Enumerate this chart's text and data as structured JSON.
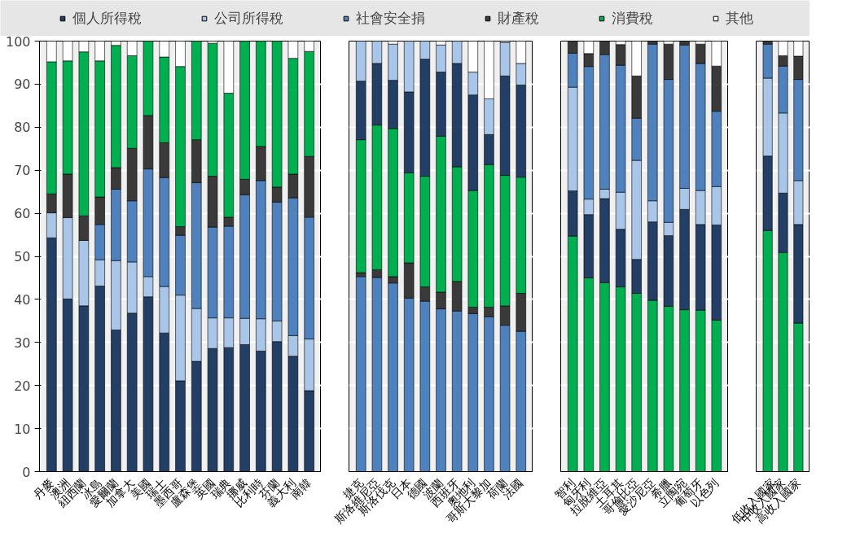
{
  "chart_data": [
    {
      "type": "bar",
      "stacked": true,
      "legend": "top",
      "grid": "y",
      "ylim": [
        0,
        100
      ],
      "yticks": [
        0,
        10,
        20,
        30,
        40,
        50,
        60,
        70,
        80,
        90,
        100
      ],
      "categories": [
        "丹麥",
        "澳洲",
        "紐西蘭",
        "冰島",
        "愛爾蘭",
        "加拿大",
        "美國",
        "瑞士",
        "墨西哥",
        "盧森堡",
        "英國",
        "瑞典",
        "挪威",
        "比利時",
        "芬蘭",
        "義大利",
        "南韓"
      ],
      "series": [
        {
          "name": "個人所得稅",
          "color": "#243f66",
          "values": [
            54.3,
            40.1,
            38.5,
            43.1,
            32.9,
            36.8,
            40.6,
            32.2,
            21.1,
            25.6,
            28.6,
            28.8,
            29.5,
            28.0,
            30.2,
            26.8,
            18.8
          ]
        },
        {
          "name": "公司所得稅",
          "color": "#a9c6e8",
          "values": [
            5.8,
            18.9,
            15.2,
            6.1,
            16.1,
            11.9,
            4.7,
            10.8,
            19.9,
            12.3,
            7.1,
            6.9,
            6.1,
            7.5,
            4.8,
            4.8,
            12.0
          ]
        },
        {
          "name": "社會安全捐",
          "color": "#4f81bd",
          "values": [
            0,
            0,
            0,
            8.2,
            16.6,
            14.2,
            25.0,
            25.3,
            13.9,
            29.2,
            21.1,
            21.3,
            28.7,
            32.1,
            27.6,
            32.0,
            28.3
          ]
        },
        {
          "name": "財產稅",
          "color": "#3a3a3a",
          "values": [
            4.4,
            10.1,
            5.7,
            6.4,
            5.0,
            12.2,
            12.4,
            8.1,
            2.0,
            10.0,
            11.8,
            2.1,
            3.6,
            7.9,
            3.5,
            5.5,
            14.1
          ]
        },
        {
          "name": "消費稅",
          "color": "#00b050",
          "values": [
            30.7,
            26.3,
            38.1,
            31.6,
            28.4,
            21.5,
            17.3,
            19.9,
            37.2,
            22.9,
            30.9,
            28.8,
            32.1,
            24.5,
            33.9,
            26.9,
            24.4
          ]
        },
        {
          "name": "其他",
          "color": "#ffffff",
          "values": [
            4.8,
            4.6,
            2.5,
            4.6,
            1.0,
            3.4,
            0,
            3.7,
            5.9,
            0,
            0.5,
            12.1,
            0,
            0,
            0,
            4.0,
            2.4
          ]
        }
      ]
    },
    {
      "type": "bar",
      "stacked": true,
      "grid": "y",
      "tick_labels": "x",
      "ylim": [
        0,
        100
      ],
      "yticks": [
        0,
        10,
        20,
        30,
        40,
        50,
        60,
        70,
        80,
        90,
        100
      ],
      "categories": [
        "捷克",
        "斯洛維尼亞",
        "斯洛伐克",
        "日本",
        "德國",
        "波蘭",
        "西班牙",
        "奧地利",
        "哥斯大黎加",
        "荷蘭",
        "法國"
      ],
      "series": [
        {
          "color": "#4f81bd",
          "values": [
            45.3,
            45.1,
            43.8,
            40.3,
            39.6,
            37.8,
            37.3,
            36.7,
            36.0,
            34.0,
            32.6
          ]
        },
        {
          "color": "#3a3a3a",
          "values": [
            0.9,
            1.8,
            1.5,
            8.2,
            3.3,
            3.9,
            6.9,
            1.5,
            2.2,
            4.5,
            8.8
          ]
        },
        {
          "color": "#00b050",
          "values": [
            30.9,
            33.6,
            34.4,
            20.9,
            25.7,
            36.2,
            26.6,
            27.1,
            33.1,
            30.3,
            27.0
          ]
        },
        {
          "color": "#243f66",
          "values": [
            13.6,
            14.3,
            11.2,
            18.8,
            27.2,
            14.9,
            24.0,
            22.2,
            7.0,
            23.1,
            21.4
          ]
        },
        {
          "color": "#a9c6e8",
          "values": [
            9.3,
            5.2,
            8.4,
            11.8,
            4.2,
            6.3,
            5.2,
            5.3,
            8.3,
            7.8,
            5.0
          ]
        },
        {
          "color": "#ffffff",
          "values": [
            0,
            0,
            0.7,
            0,
            0,
            0.9,
            0,
            7.2,
            13.4,
            0.3,
            5.2
          ]
        }
      ]
    },
    {
      "type": "bar",
      "stacked": true,
      "grid": "y",
      "tick_labels": "x",
      "ylim": [
        0,
        100
      ],
      "yticks": [
        0,
        10,
        20,
        30,
        40,
        50,
        60,
        70,
        80,
        90,
        100
      ],
      "categories": [
        "智利",
        "匈牙利",
        "拉脫維亞",
        "土耳其",
        "哥倫比亞",
        "愛沙尼亞",
        "希臘",
        "立陶宛",
        "葡萄牙",
        "以色列"
      ],
      "series": [
        {
          "color": "#00b050",
          "values": [
            54.7,
            45.0,
            43.9,
            42.9,
            41.4,
            39.8,
            38.4,
            37.6,
            37.5,
            35.2
          ]
        },
        {
          "color": "#243f66",
          "values": [
            10.5,
            14.7,
            19.5,
            13.4,
            7.9,
            18.2,
            16.4,
            23.3,
            19.9,
            22.1
          ]
        },
        {
          "color": "#a9c6e8",
          "values": [
            24.1,
            3.6,
            2.2,
            8.6,
            23.0,
            4.9,
            3.1,
            4.9,
            7.9,
            8.9
          ]
        },
        {
          "color": "#4f81bd",
          "values": [
            7.9,
            30.8,
            31.3,
            29.5,
            9.8,
            36.4,
            33.2,
            33.3,
            29.5,
            17.5
          ]
        },
        {
          "color": "#3a3a3a",
          "values": [
            2.8,
            3.0,
            3.1,
            4.8,
            9.8,
            0.7,
            8.2,
            0.9,
            4.5,
            10.5
          ]
        },
        {
          "color": "#ffffff",
          "values": [
            0,
            2.9,
            0,
            0.8,
            8.1,
            0,
            0.7,
            0,
            0.7,
            5.8
          ]
        }
      ]
    },
    {
      "type": "bar",
      "stacked": true,
      "grid": "y",
      "tick_labels": "x",
      "ylim": [
        0,
        100
      ],
      "yticks": [
        0,
        10,
        20,
        30,
        40,
        50,
        60,
        70,
        80,
        90,
        100
      ],
      "categories": [
        "低收入國家",
        "中收入國家",
        "高收入國家"
      ],
      "series": [
        {
          "color": "#00b050",
          "values": [
            56.0,
            50.9,
            34.5
          ]
        },
        {
          "color": "#243f66",
          "values": [
            17.3,
            13.8,
            22.9
          ]
        },
        {
          "color": "#a9c6e8",
          "values": [
            18.1,
            18.6,
            10.2
          ]
        },
        {
          "color": "#4f81bd",
          "values": [
            7.9,
            10.9,
            23.5
          ]
        },
        {
          "color": "#3a3a3a",
          "values": [
            0.7,
            2.4,
            5.4
          ]
        },
        {
          "color": "#ffffff",
          "values": [
            0,
            3.4,
            3.5
          ]
        }
      ]
    }
  ]
}
